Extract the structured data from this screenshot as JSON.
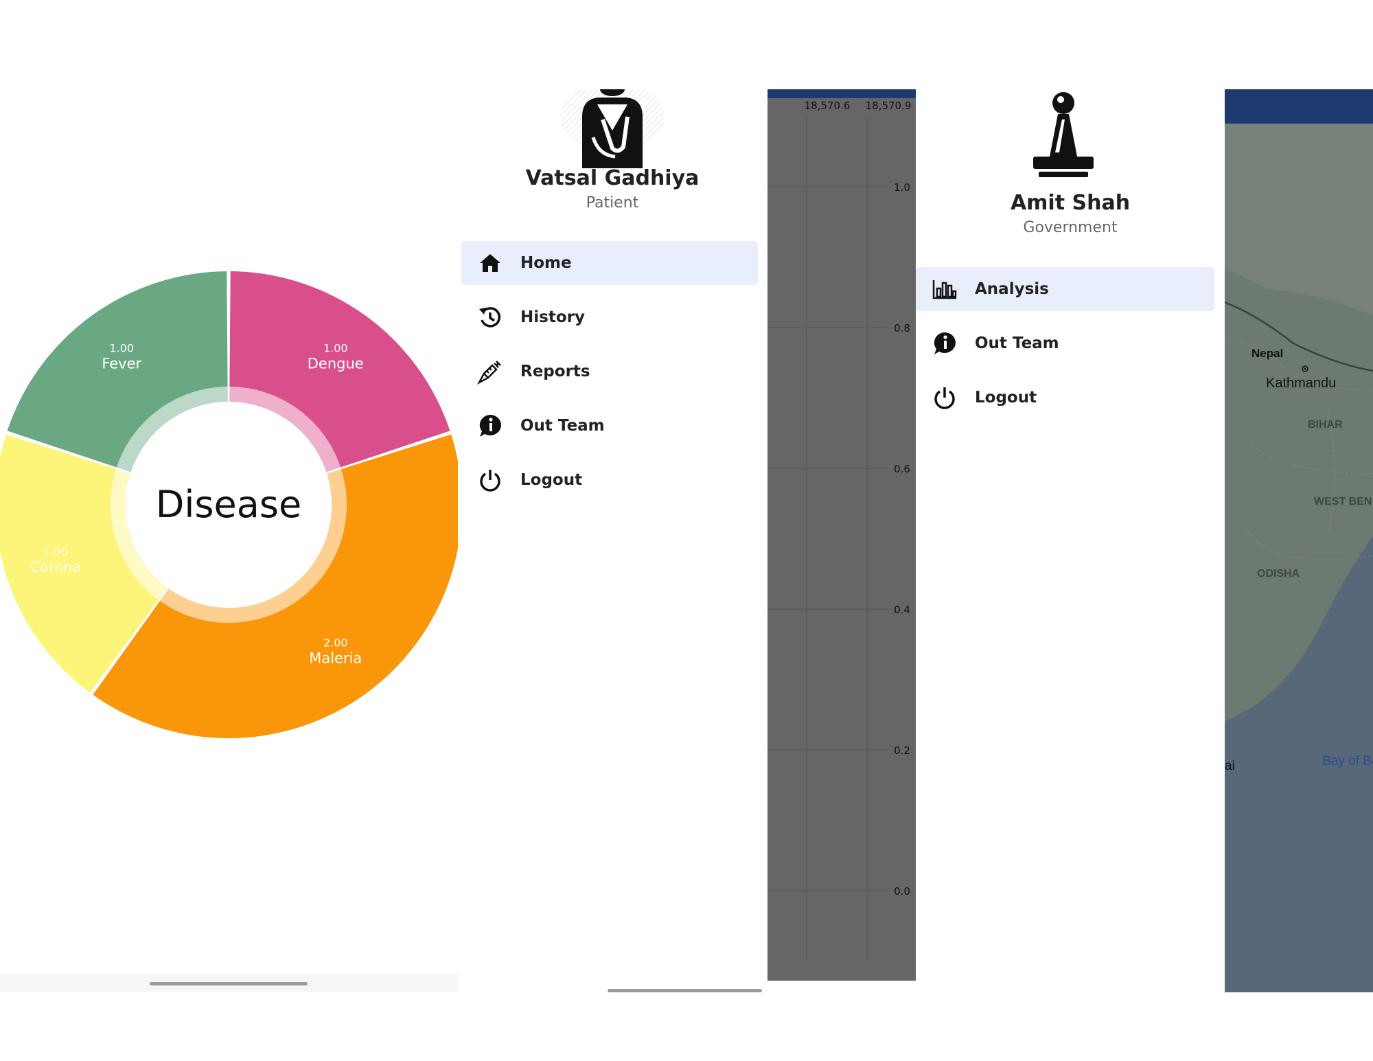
{
  "donut_screen": {
    "center_label": "Disease"
  },
  "chart_data": {
    "type": "pie",
    "title": "Disease",
    "categories": [
      "Dengue",
      "Maleria",
      "Corona",
      "Fever"
    ],
    "values": [
      1.0,
      2.0,
      1.0,
      1.0
    ],
    "value_labels": [
      "1.00",
      "2.00",
      "1.00",
      "1.00"
    ],
    "colors": [
      "#d94f8c",
      "#fa960a",
      "#fdf57a",
      "#6aa884"
    ]
  },
  "patient_drawer": {
    "name": "Vatsal Gadhiya",
    "role": "Patient",
    "menu": [
      {
        "label": "Home",
        "icon": "home-icon",
        "active": true
      },
      {
        "label": "History",
        "icon": "history-icon",
        "active": false
      },
      {
        "label": "Reports",
        "icon": "syringe-icon",
        "active": false
      },
      {
        "label": "Out Team",
        "icon": "info-chat-icon",
        "active": false
      },
      {
        "label": "Logout",
        "icon": "power-icon",
        "active": false
      }
    ]
  },
  "graph_panel": {
    "x_ticks": [
      "18,570.6",
      "18,570.9"
    ],
    "y_ticks": [
      "1.0",
      "0.8",
      "0.6",
      "0.4",
      "0.2",
      "0.0"
    ]
  },
  "gov_drawer": {
    "name": "Amit Shah",
    "role": "Government",
    "menu": [
      {
        "label": "Analysis",
        "icon": "bar-chart-icon",
        "active": true
      },
      {
        "label": "Out Team",
        "icon": "info-chat-icon",
        "active": false
      },
      {
        "label": "Logout",
        "icon": "power-icon",
        "active": false
      }
    ]
  },
  "map_panel": {
    "labels": [
      "Nepal",
      "Kathmandu",
      "BIHAR",
      "WEST BEN",
      "ODISHA",
      "Bay of Be",
      "ai"
    ]
  },
  "colors": {
    "active_menu_bg": "#e8eefc",
    "top_bar": "#1e3a6e",
    "graph_bg": "#666666",
    "map_land": "#6d7a72",
    "map_sea": "#56687a"
  }
}
